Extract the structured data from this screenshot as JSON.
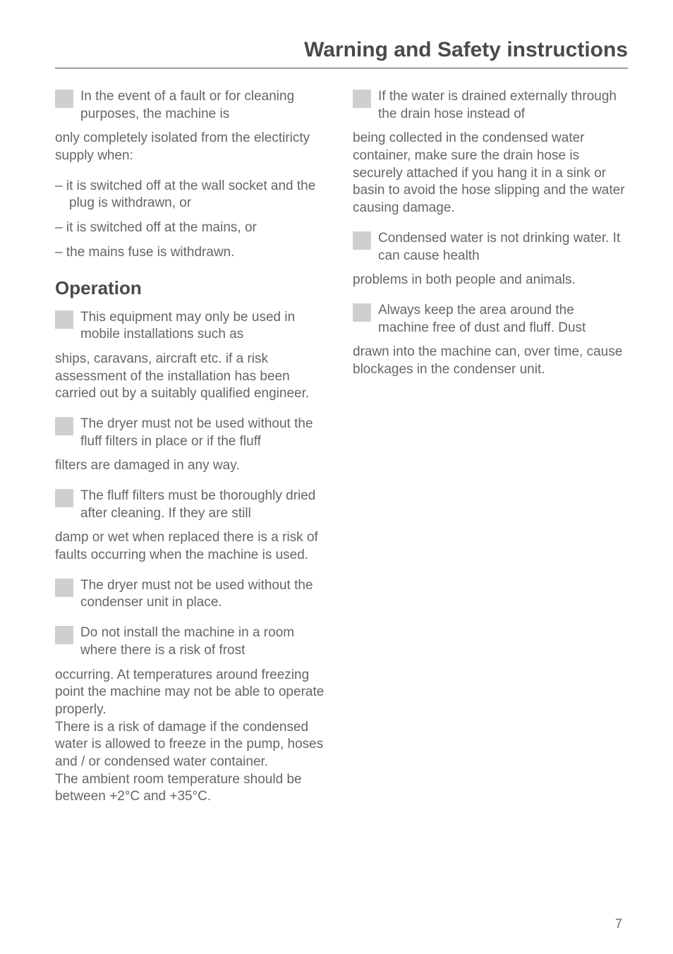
{
  "title": "Warning and Safety instructions",
  "colors": {
    "text": "#666666",
    "heading": "#4a4a4a",
    "icon_bg": "#cfcfcf",
    "rule": "#4a4a4a",
    "page_bg": "#ffffff"
  },
  "typography": {
    "title_fontsize": 30,
    "subheading_fontsize": 26,
    "body_fontsize": 19,
    "page_num_fontsize": 18,
    "line_height": 1.3
  },
  "left_column": {
    "block1": {
      "icon_text": "In the event of a fault or for cleaning purposes, the machine is",
      "cont": "only completely isolated from the electiricty supply when:"
    },
    "list_items": [
      "it is switched off at the wall socket and the plug is withdrawn, or",
      "it is switched off at the mains, or",
      "the mains fuse is withdrawn."
    ],
    "subheading": "Operation",
    "block2": {
      "icon_text": "This equipment may only be used in mobile installations such as",
      "cont": "ships, caravans, aircraft etc. if a risk assessment of the installation has been carried out by a suitably qualified engineer."
    },
    "block3": {
      "icon_text": "The dryer must not be used without the fluff filters in place or if the fluff",
      "cont": "filters are damaged in any way."
    },
    "block4": {
      "icon_text": "The fluff filters must be thoroughly dried after cleaning. If they are still",
      "cont": "damp or wet when replaced there is a risk of faults occurring when the machine is used."
    },
    "block5": {
      "icon_text": "The dryer must not be used without the condenser unit in place."
    },
    "block6": {
      "icon_text": "Do not install the machine in a room where there is a risk of frost",
      "cont": "occurring. At temperatures around freezing point the machine may not be able to operate properly.\nThere is a risk of damage if the condensed water is allowed to freeze in the pump, hoses and / or condensed water container.\nThe ambient room temperature should be between +2°C and +35°C."
    }
  },
  "right_column": {
    "block1": {
      "icon_text": "If the water is drained externally through the drain hose instead of",
      "cont": "being collected in the condensed water container, make sure the drain hose is securely attached if you hang it in a sink or basin to avoid the hose slipping and the water causing damage."
    },
    "block2": {
      "icon_text": "Condensed water is not drinking water. It can cause health",
      "cont": "problems in both people and animals."
    },
    "block3": {
      "icon_text": "Always keep the area around the machine free of dust and fluff. Dust",
      "cont": "drawn into the machine can, over time, cause blockages in the condenser unit."
    }
  },
  "page_number": "7"
}
